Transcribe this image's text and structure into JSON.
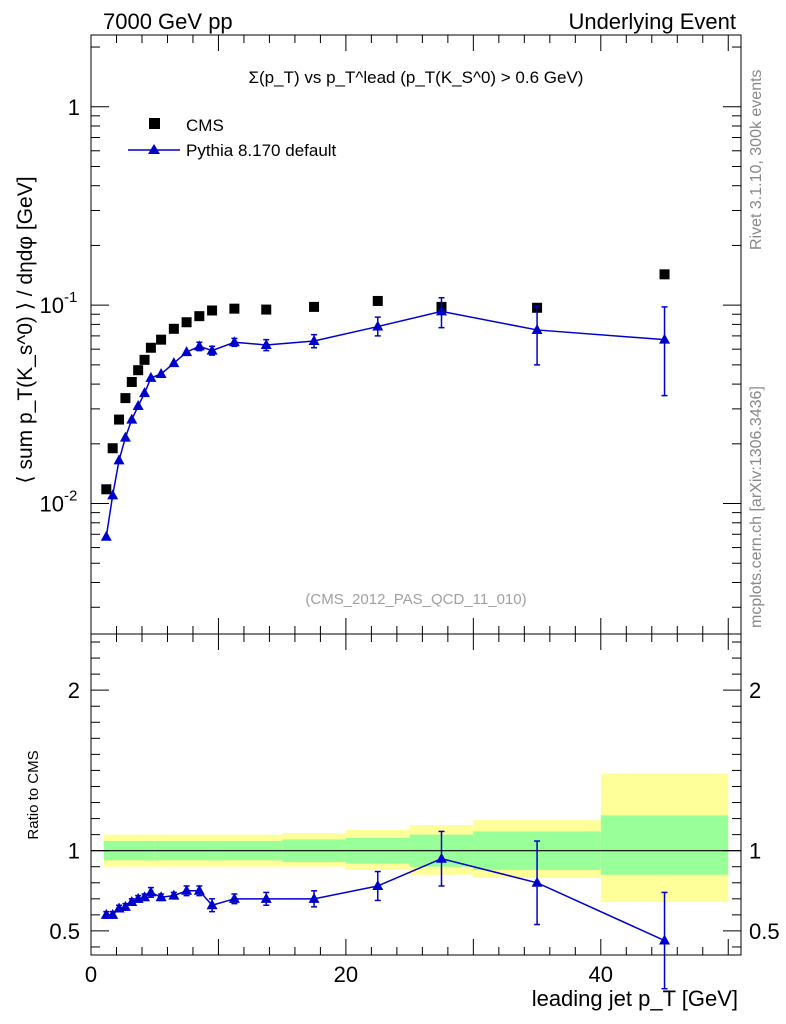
{
  "header": {
    "left": "7000 GeV pp",
    "right": "Underlying Event"
  },
  "side_labels": {
    "rivet": "Rivet 3.1.10,  300k events",
    "mcplots": "mcplots.cern.ch [arXiv:1306.3436]"
  },
  "chart_data": {
    "type": "scatter",
    "title": "Σ(p_T) vs p_T^lead (p_T(K_S^0) > 0.6 GeV)",
    "analysis_id": "(CMS_2012_PAS_QCD_11_010)",
    "xlabel": "leading jet p_T [GeV]",
    "ylabel": "⟨ sum p_T(K_s^0) ⟩ / dηdφ [GeV]",
    "ratio_ylabel": "Ratio to CMS",
    "xlim": [
      0,
      51
    ],
    "ylim": [
      0.0022,
      2.3
    ],
    "yscale": "log",
    "ratio_ylim": [
      0.35,
      2.35
    ],
    "x_ticks": [
      0,
      20,
      40
    ],
    "y_tick_labels": [
      "10^-2",
      "10^-1",
      "1"
    ],
    "ratio_tick_labels": [
      "0.5",
      "1",
      "2"
    ],
    "legend": [
      "CMS",
      "Pythia 8.170 default"
    ],
    "series": [
      {
        "name": "CMS",
        "color": "#000000",
        "marker": "square",
        "x": [
          1.2,
          1.7,
          2.2,
          2.7,
          3.2,
          3.7,
          4.2,
          4.7,
          5.5,
          6.5,
          7.5,
          8.5,
          9.5,
          11.25,
          13.75,
          17.5,
          22.5,
          27.5,
          35,
          45
        ],
        "y": [
          0.0118,
          0.019,
          0.0265,
          0.034,
          0.041,
          0.047,
          0.053,
          0.061,
          0.067,
          0.076,
          0.082,
          0.088,
          0.094,
          0.096,
          0.095,
          0.098,
          0.105,
          0.098,
          0.097,
          0.143
        ]
      },
      {
        "name": "Pythia 8.170 default",
        "color": "#0000cc",
        "marker": "triangle",
        "x": [
          1.2,
          1.7,
          2.2,
          2.7,
          3.2,
          3.7,
          4.2,
          4.7,
          5.5,
          6.5,
          7.5,
          8.5,
          9.5,
          11.25,
          13.75,
          17.5,
          22.5,
          27.5,
          35,
          45
        ],
        "y": [
          0.0068,
          0.011,
          0.0165,
          0.0215,
          0.0265,
          0.031,
          0.036,
          0.043,
          0.045,
          0.051,
          0.058,
          0.062,
          0.059,
          0.065,
          0.063,
          0.066,
          0.078,
          0.093,
          0.075,
          0.067
        ],
        "yerr_lo": [
          0,
          0,
          0,
          0,
          0,
          0,
          0,
          0,
          0,
          0,
          0,
          0.003,
          0.003,
          0.003,
          0.004,
          0.005,
          0.008,
          0.016,
          0.025,
          0.032
        ],
        "yerr_hi": [
          0,
          0,
          0,
          0,
          0,
          0,
          0,
          0,
          0,
          0,
          0,
          0.003,
          0.003,
          0.003,
          0.004,
          0.005,
          0.009,
          0.016,
          0.024,
          0.031
        ]
      }
    ],
    "ratio": {
      "reference": 1.0,
      "x": [
        1.2,
        1.7,
        2.2,
        2.7,
        3.2,
        3.7,
        4.2,
        4.7,
        5.5,
        6.5,
        7.5,
        8.5,
        9.5,
        11.25,
        13.75,
        17.5,
        22.5,
        27.5,
        35,
        45
      ],
      "y": [
        0.6,
        0.6,
        0.64,
        0.65,
        0.68,
        0.7,
        0.71,
        0.74,
        0.71,
        0.72,
        0.75,
        0.75,
        0.66,
        0.7,
        0.7,
        0.7,
        0.78,
        0.95,
        0.8,
        0.44
      ],
      "err": [
        0.02,
        0.02,
        0.02,
        0.02,
        0.02,
        0.02,
        0.02,
        0.03,
        0.02,
        0.02,
        0.03,
        0.03,
        0.04,
        0.03,
        0.04,
        0.05,
        0.09,
        0.17,
        0.26,
        0.3
      ],
      "bands": [
        {
          "xlo": 1,
          "xhi": 5,
          "green": [
            0.94,
            1.06
          ],
          "yellow": [
            0.9,
            1.1
          ]
        },
        {
          "xlo": 5,
          "xhi": 10,
          "green": [
            0.94,
            1.06
          ],
          "yellow": [
            0.9,
            1.1
          ]
        },
        {
          "xlo": 10,
          "xhi": 15,
          "green": [
            0.94,
            1.06
          ],
          "yellow": [
            0.9,
            1.1
          ]
        },
        {
          "xlo": 15,
          "xhi": 20,
          "green": [
            0.93,
            1.07
          ],
          "yellow": [
            0.9,
            1.11
          ]
        },
        {
          "xlo": 20,
          "xhi": 25,
          "green": [
            0.92,
            1.08
          ],
          "yellow": [
            0.88,
            1.13
          ]
        },
        {
          "xlo": 25,
          "xhi": 30,
          "green": [
            0.9,
            1.1
          ],
          "yellow": [
            0.85,
            1.16
          ]
        },
        {
          "xlo": 30,
          "xhi": 40,
          "green": [
            0.88,
            1.12
          ],
          "yellow": [
            0.83,
            1.19
          ]
        },
        {
          "xlo": 40,
          "xhi": 50,
          "green": [
            0.85,
            1.22
          ],
          "yellow": [
            0.68,
            1.48
          ]
        }
      ]
    }
  }
}
